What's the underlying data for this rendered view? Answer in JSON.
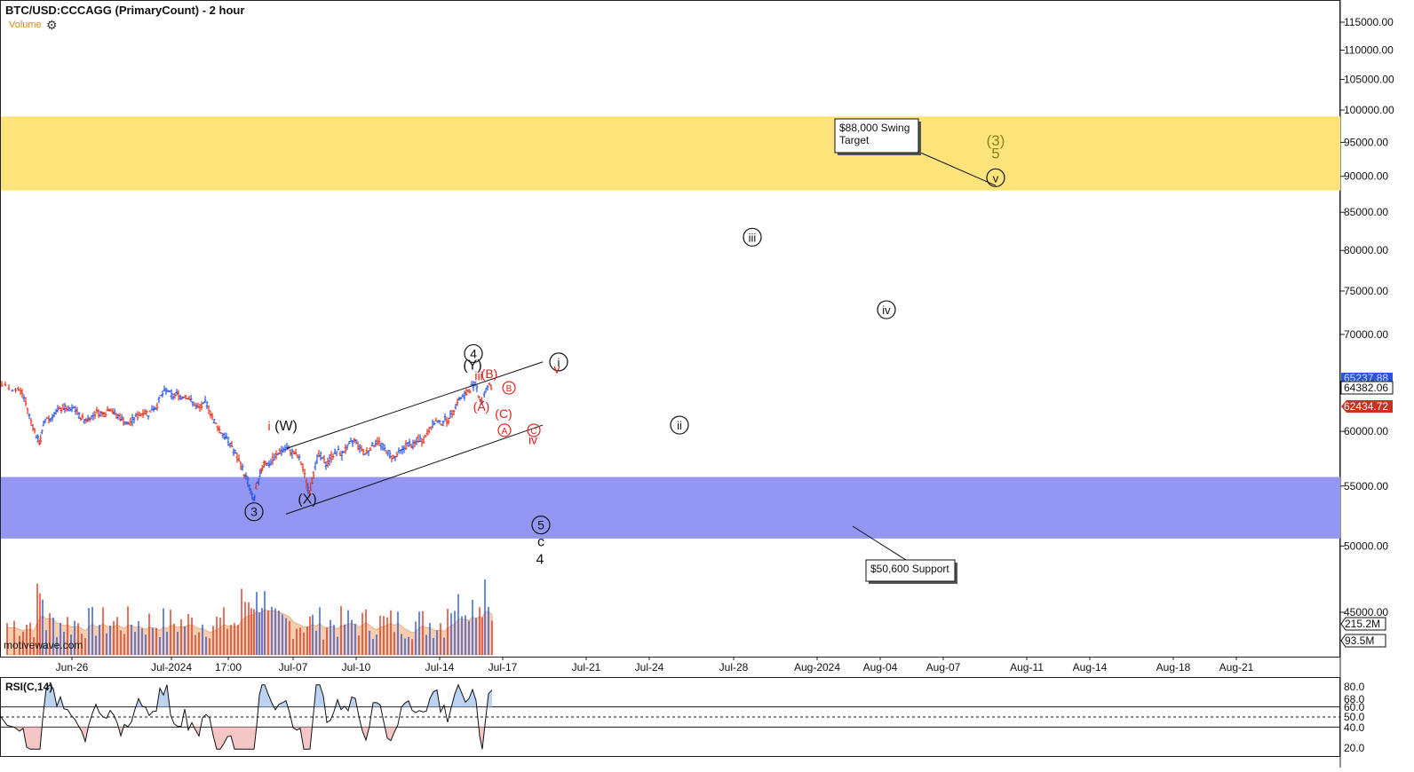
{
  "header": {
    "title": "BTC/USD:CCCAGG (PrimaryCount) - 2 hour",
    "volume_label": "Volume"
  },
  "watermark": "motivewave.com",
  "colors": {
    "resistance_zone": "#fde47a",
    "support_zone": "#9397f3",
    "up_bar": "#2a55d9",
    "down_bar": "#e0331f",
    "wave_red": "#e0201a",
    "wave_gold": "#9a7d12",
    "vol_area": "#f4c39a"
  },
  "chart_data": [
    {
      "type": "candlestick",
      "title": "BTC/USD:CCCAGG (PrimaryCount) - 2 hour",
      "y_scale": "log",
      "ylim": [
        45000,
        117000
      ],
      "y_ticks": [
        "115000.00",
        "110000.00",
        "105000.00",
        "100000.00",
        "95000.00",
        "90000.00",
        "85000.00",
        "80000.00",
        "75000.00",
        "70000.00",
        "65000.00",
        "60000.00",
        "55000.00",
        "50000.00",
        "45000.00"
      ],
      "x_ticks": [
        "Jun-26",
        "Jul-2024",
        "17:00",
        "Jul-07",
        "Jul-10",
        "Jul-14",
        "Jul-17",
        "Jul-21",
        "Jul-24",
        "Jul-28",
        "Aug-2024",
        "Aug-04",
        "Aug-07",
        "Aug-11",
        "Aug-14",
        "Aug-18",
        "Aug-21"
      ],
      "price_badges": [
        {
          "text": "65237.88",
          "style": "blue-partial"
        },
        {
          "text": "64382.06",
          "style": "outline"
        },
        {
          "text": "62434.72",
          "style": "red"
        }
      ],
      "volume_badges": [
        "215.2M",
        "93.5M"
      ],
      "zones": [
        {
          "name": "resistance",
          "from": 88000,
          "to": 99000
        },
        {
          "name": "support",
          "from": 50600,
          "to": 55800
        }
      ],
      "price_path": [
        [
          0,
          64600
        ],
        [
          8,
          64400
        ],
        [
          16,
          64100
        ],
        [
          22,
          64000
        ],
        [
          26,
          63600
        ],
        [
          30,
          62400
        ],
        [
          34,
          61200
        ],
        [
          38,
          60200
        ],
        [
          42,
          59400
        ],
        [
          45,
          58800
        ],
        [
          48,
          60300
        ],
        [
          52,
          61400
        ],
        [
          56,
          61100
        ],
        [
          60,
          61700
        ],
        [
          64,
          61900
        ],
        [
          68,
          62100
        ],
        [
          72,
          62400
        ],
        [
          76,
          62000
        ],
        [
          80,
          62100
        ],
        [
          84,
          62300
        ],
        [
          88,
          61600
        ],
        [
          92,
          61300
        ],
        [
          96,
          61100
        ],
        [
          100,
          61300
        ],
        [
          104,
          61500
        ],
        [
          108,
          61800
        ],
        [
          112,
          61800
        ],
        [
          116,
          61600
        ],
        [
          120,
          61900
        ],
        [
          124,
          62300
        ],
        [
          128,
          61800
        ],
        [
          132,
          61500
        ],
        [
          136,
          61300
        ],
        [
          140,
          61000
        ],
        [
          144,
          60600
        ],
        [
          148,
          61000
        ],
        [
          152,
          61400
        ],
        [
          156,
          61500
        ],
        [
          160,
          61800
        ],
        [
          164,
          61900
        ],
        [
          168,
          61600
        ],
        [
          172,
          62400
        ],
        [
          176,
          62300
        ],
        [
          180,
          63300
        ],
        [
          184,
          63800
        ],
        [
          188,
          64200
        ],
        [
          192,
          63600
        ],
        [
          196,
          63400
        ],
        [
          200,
          63800
        ],
        [
          204,
          63300
        ],
        [
          208,
          63600
        ],
        [
          212,
          63300
        ],
        [
          216,
          62900
        ],
        [
          220,
          62500
        ],
        [
          224,
          62200
        ],
        [
          228,
          62500
        ],
        [
          232,
          62900
        ],
        [
          236,
          62000
        ],
        [
          240,
          61200
        ],
        [
          244,
          60500
        ],
        [
          248,
          60000
        ],
        [
          252,
          59700
        ],
        [
          256,
          59300
        ],
        [
          260,
          58800
        ],
        [
          264,
          58000
        ],
        [
          268,
          57300
        ],
        [
          272,
          56800
        ],
        [
          276,
          55900
        ],
        [
          280,
          55300
        ],
        [
          283,
          54200
        ],
        [
          286,
          53800
        ],
        [
          289,
          54900
        ],
        [
          292,
          55700
        ],
        [
          295,
          56700
        ],
        [
          298,
          57200
        ],
        [
          302,
          56900
        ],
        [
          306,
          57200
        ],
        [
          310,
          57600
        ],
        [
          314,
          58000
        ],
        [
          318,
          58300
        ],
        [
          322,
          58500
        ],
        [
          326,
          58200
        ],
        [
          330,
          58000
        ],
        [
          334,
          57700
        ],
        [
          338,
          57300
        ],
        [
          342,
          56200
        ],
        [
          346,
          55000
        ],
        [
          349,
          54500
        ],
        [
          352,
          55800
        ],
        [
          356,
          57300
        ],
        [
          360,
          57800
        ],
        [
          364,
          57300
        ],
        [
          368,
          56900
        ],
        [
          372,
          57500
        ],
        [
          376,
          57900
        ],
        [
          380,
          58200
        ],
        [
          384,
          57800
        ],
        [
          388,
          58300
        ],
        [
          392,
          58500
        ],
        [
          396,
          59000
        ],
        [
          400,
          59200
        ],
        [
          404,
          58600
        ],
        [
          408,
          58200
        ],
        [
          412,
          57900
        ],
        [
          416,
          58400
        ],
        [
          420,
          58700
        ],
        [
          424,
          59100
        ],
        [
          428,
          58900
        ],
        [
          432,
          58400
        ],
        [
          436,
          58100
        ],
        [
          440,
          57700
        ],
        [
          444,
          57500
        ],
        [
          448,
          57900
        ],
        [
          452,
          58200
        ],
        [
          456,
          58500
        ],
        [
          460,
          58900
        ],
        [
          464,
          58600
        ],
        [
          468,
          58900
        ],
        [
          472,
          59300
        ],
        [
          476,
          59100
        ],
        [
          480,
          59600
        ],
        [
          484,
          60300
        ],
        [
          488,
          60800
        ],
        [
          492,
          61000
        ],
        [
          496,
          60700
        ],
        [
          500,
          61200
        ],
        [
          504,
          61000
        ],
        [
          508,
          61600
        ],
        [
          512,
          62400
        ],
        [
          516,
          63100
        ],
        [
          520,
          63300
        ],
        [
          524,
          63600
        ],
        [
          528,
          64000
        ],
        [
          532,
          64600
        ],
        [
          536,
          64700
        ],
        [
          540,
          63200
        ],
        [
          543,
          62700
        ],
        [
          546,
          63900
        ],
        [
          550,
          64600
        ],
        [
          554,
          64100
        ]
      ],
      "volume_max_m": 215.2,
      "rsi": {
        "label": "RSI(C,14)",
        "levels": [
          "80.0",
          "68.0",
          "60.0",
          "50.0",
          "40.0",
          "20.0"
        ],
        "guides": [
          60,
          50,
          40
        ]
      },
      "annotations": [
        {
          "label": "(W)",
          "t": 322,
          "p": 60100,
          "color": "black"
        },
        {
          "label": "i",
          "t": 303,
          "p": 60100,
          "color": "red"
        },
        {
          "label": "3",
          "t": 286,
          "p": 52800,
          "color": "black",
          "circled": true
        },
        {
          "label": "(X)",
          "t": 346,
          "p": 53500,
          "color": "black"
        },
        {
          "label": "4",
          "t": 533,
          "p": 67900,
          "color": "black",
          "circled": true
        },
        {
          "label": "(Y)",
          "t": 532,
          "p": 66200,
          "color": "black"
        },
        {
          "label": "iii",
          "t": 539,
          "p": 65100,
          "color": "red"
        },
        {
          "label": "(B)",
          "t": 551,
          "p": 65300,
          "color": "red"
        },
        {
          "label": "B",
          "t": 573,
          "p": 64300,
          "color": "red",
          "circled": true
        },
        {
          "label": "(A)",
          "t": 542,
          "p": 62000,
          "color": "red"
        },
        {
          "label": "(C)",
          "t": 567,
          "p": 61300,
          "color": "red"
        },
        {
          "label": "A",
          "t": 568,
          "p": 60100,
          "color": "red",
          "circled": true
        },
        {
          "label": "C",
          "t": 601,
          "p": 60100,
          "color": "red",
          "circled": true
        },
        {
          "label": "iv",
          "t": 600,
          "p": 58800,
          "color": "red"
        },
        {
          "label": "i",
          "t": 629,
          "p": 67000,
          "color": "black",
          "circled": true
        },
        {
          "label": "v",
          "t": 627,
          "p": 65800,
          "color": "red"
        },
        {
          "label": "ii",
          "t": 765,
          "p": 60600,
          "color": "black",
          "circled": true
        },
        {
          "label": "iii",
          "t": 847,
          "p": 81700,
          "color": "black",
          "circled": true
        },
        {
          "label": "iv",
          "t": 998,
          "p": 72800,
          "color": "black",
          "circled": true
        },
        {
          "label": "(3)",
          "t": 1121,
          "p": 94500,
          "color": "gold"
        },
        {
          "label": "5",
          "t": 1121,
          "p": 92600,
          "color": "gold"
        },
        {
          "label": "v",
          "t": 1121,
          "p": 89800,
          "color": "black",
          "circled": true
        },
        {
          "label": "5",
          "t": 609,
          "p": 51700,
          "color": "black",
          "circled": true
        },
        {
          "label": "c",
          "t": 609,
          "p": 50000,
          "color": "black"
        },
        {
          "label": "4",
          "t": 608,
          "p": 48600,
          "color": "black"
        }
      ],
      "trendlines": [
        [
          [
            323,
            58400
          ],
          [
            611,
            67000
          ]
        ],
        [
          [
            322,
            52600
          ],
          [
            611,
            60600
          ]
        ]
      ],
      "callouts": [
        {
          "text_lines": [
            "$88,000 Swing",
            "Target"
          ],
          "point": [
            1121,
            88700
          ]
        },
        {
          "text_lines": [
            "$50,600 Support"
          ],
          "point": [
            960,
            51600
          ]
        }
      ]
    }
  ]
}
